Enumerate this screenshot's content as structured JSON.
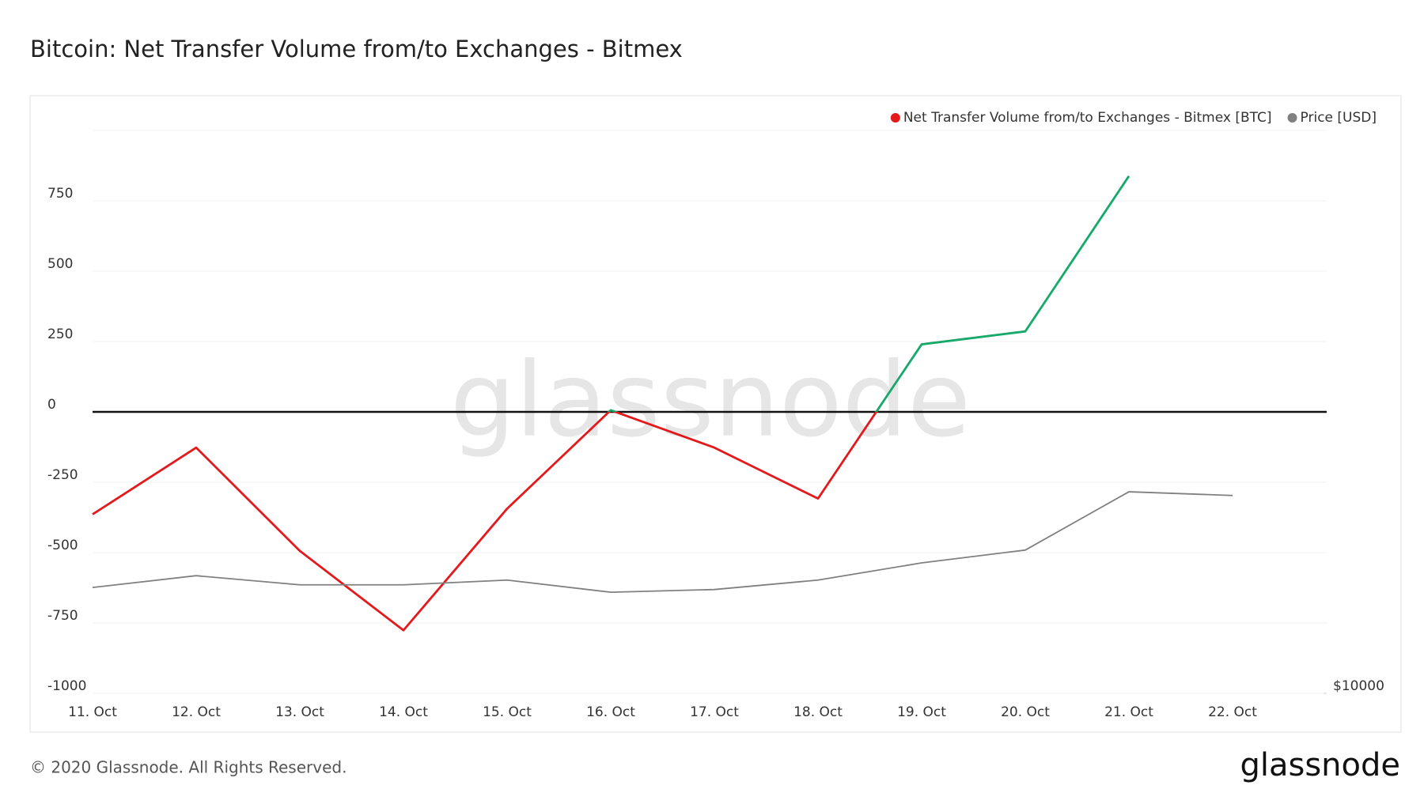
{
  "chart_data": {
    "type": "line",
    "title": "Bitcoin: Net Transfer Volume from/to Exchanges - Bitmex",
    "categories": [
      "11. Oct",
      "12. Oct",
      "13. Oct",
      "14. Oct",
      "15. Oct",
      "16. Oct",
      "17. Oct",
      "18. Oct",
      "19. Oct",
      "20. Oct",
      "21. Oct",
      "22. Oct"
    ],
    "series": [
      {
        "name": "Net Transfer Volume from/to Exchanges - Bitmex [BTC]",
        "color": "#e3191c",
        "positive_color": "#18a96a",
        "values": [
          -364,
          -127,
          -494,
          -776,
          -344,
          6,
          -127,
          -308,
          240,
          286,
          838,
          null
        ]
      },
      {
        "name": "Price [USD]",
        "color": "#808080",
        "axis": "y2",
        "values": [
          11570,
          11745,
          11610,
          11610,
          11680,
          11500,
          11540,
          11680,
          11935,
          12125,
          12990,
          12935
        ]
      }
    ],
    "ylim": [
      -1000,
      1000
    ],
    "yticks": [
      -1000,
      -750,
      -500,
      -250,
      0,
      250,
      500,
      750
    ],
    "y2lim": [
      10000,
      18350
    ],
    "y2ticks": [
      {
        "value": 10000,
        "label": "$10000"
      }
    ],
    "grid": true,
    "legend": "top-right",
    "watermark": "glassnode",
    "footer": "© 2020 Glassnode. All Rights Reserved.",
    "logo": "glassnode"
  }
}
